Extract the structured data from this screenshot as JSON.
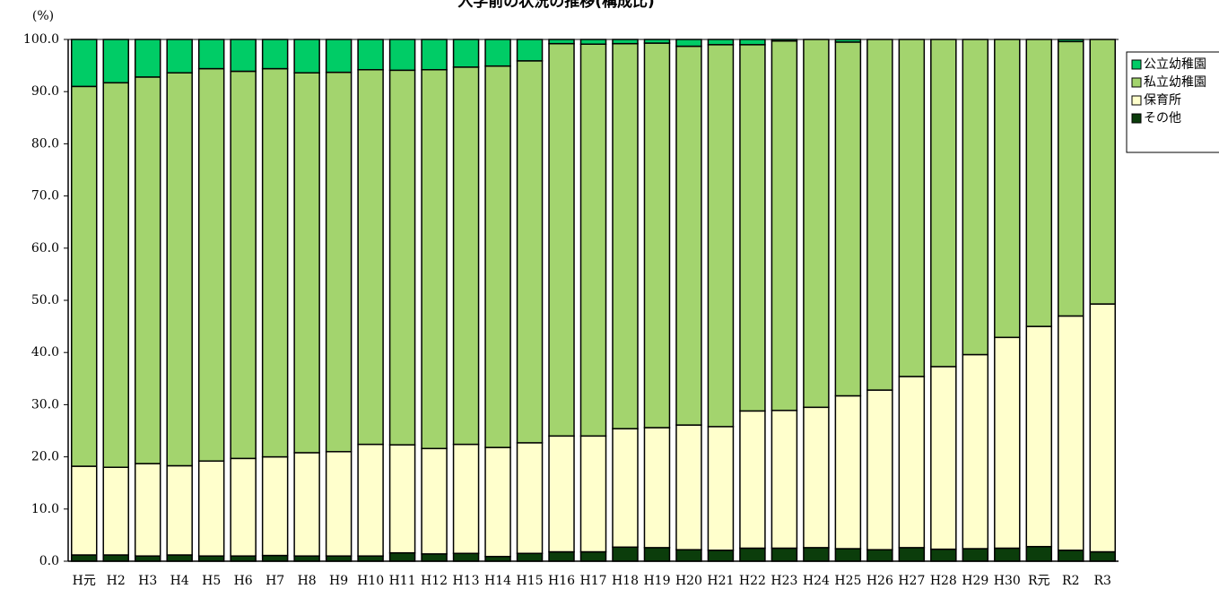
{
  "chart_data": {
    "type": "stacked_bar",
    "title": "入学前の状況の推移(構成比)",
    "y_label": "(%)",
    "categories": [
      "H元",
      "H2",
      "H3",
      "H4",
      "H5",
      "H6",
      "H7",
      "H8",
      "H9",
      "H10",
      "H11",
      "H12",
      "H13",
      "H14",
      "H15",
      "H16",
      "H17",
      "H18",
      "H19",
      "H20",
      "H21",
      "H22",
      "H23",
      "H24",
      "H25",
      "H26",
      "H27",
      "H28",
      "H29",
      "H30",
      "R元",
      "R2",
      "R3"
    ],
    "series": [
      {
        "name": "その他",
        "color": "#0b3d0b",
        "values": [
          1.2,
          1.2,
          1.0,
          1.2,
          1.0,
          1.0,
          1.1,
          1.0,
          1.0,
          1.0,
          1.6,
          1.4,
          1.5,
          0.9,
          1.5,
          1.8,
          1.8,
          2.7,
          2.6,
          2.2,
          2.1,
          2.5,
          2.5,
          2.6,
          2.4,
          2.2,
          2.6,
          2.3,
          2.4,
          2.5,
          2.8,
          2.1,
          1.8
        ]
      },
      {
        "name": "保育所",
        "color": "#ffffcc",
        "values": [
          17.0,
          16.8,
          17.7,
          17.1,
          18.2,
          18.7,
          18.9,
          19.8,
          20.0,
          21.4,
          20.7,
          20.2,
          20.9,
          20.9,
          21.2,
          22.2,
          22.2,
          22.7,
          23.0,
          23.9,
          23.7,
          26.3,
          26.4,
          26.9,
          29.3,
          30.6,
          32.8,
          35.0,
          37.2,
          40.4,
          42.2,
          44.9,
          47.5
        ]
      },
      {
        "name": "私立幼稚園",
        "color": "#a3d46e",
        "values": [
          72.8,
          73.7,
          74.1,
          75.3,
          75.2,
          74.2,
          74.4,
          72.8,
          72.7,
          71.8,
          71.8,
          72.6,
          72.3,
          73.1,
          73.2,
          75.2,
          75.1,
          73.8,
          73.7,
          72.6,
          73.2,
          70.2,
          70.8,
          70.5,
          67.8,
          67.2,
          64.6,
          62.7,
          60.4,
          57.1,
          55.0,
          52.6,
          50.7
        ]
      },
      {
        "name": "公立幼稚園",
        "color": "#00cc66",
        "values": [
          9.0,
          8.3,
          7.2,
          6.4,
          5.6,
          6.1,
          5.6,
          6.4,
          6.3,
          5.8,
          5.9,
          5.8,
          5.3,
          5.1,
          4.1,
          0.8,
          0.9,
          0.8,
          0.7,
          1.3,
          1.0,
          1.0,
          0.3,
          0.0,
          0.5,
          0.0,
          0.0,
          0.0,
          0.0,
          0.0,
          0.0,
          0.4,
          0.0
        ]
      }
    ],
    "ylim": [
      0,
      100
    ],
    "yticks": [
      {
        "value": 0,
        "label": "0.0"
      },
      {
        "value": 10,
        "label": "10.0"
      },
      {
        "value": 20,
        "label": "20.0"
      },
      {
        "value": 30,
        "label": "30.0"
      },
      {
        "value": 40,
        "label": "40.0"
      },
      {
        "value": 50,
        "label": "50.0"
      },
      {
        "value": 60,
        "label": "60.0"
      },
      {
        "value": 70,
        "label": "70.0"
      },
      {
        "value": 80,
        "label": "80.0"
      },
      {
        "value": 90,
        "label": "90.0"
      },
      {
        "value": 100,
        "label": "100.0"
      }
    ],
    "legend": "right"
  }
}
